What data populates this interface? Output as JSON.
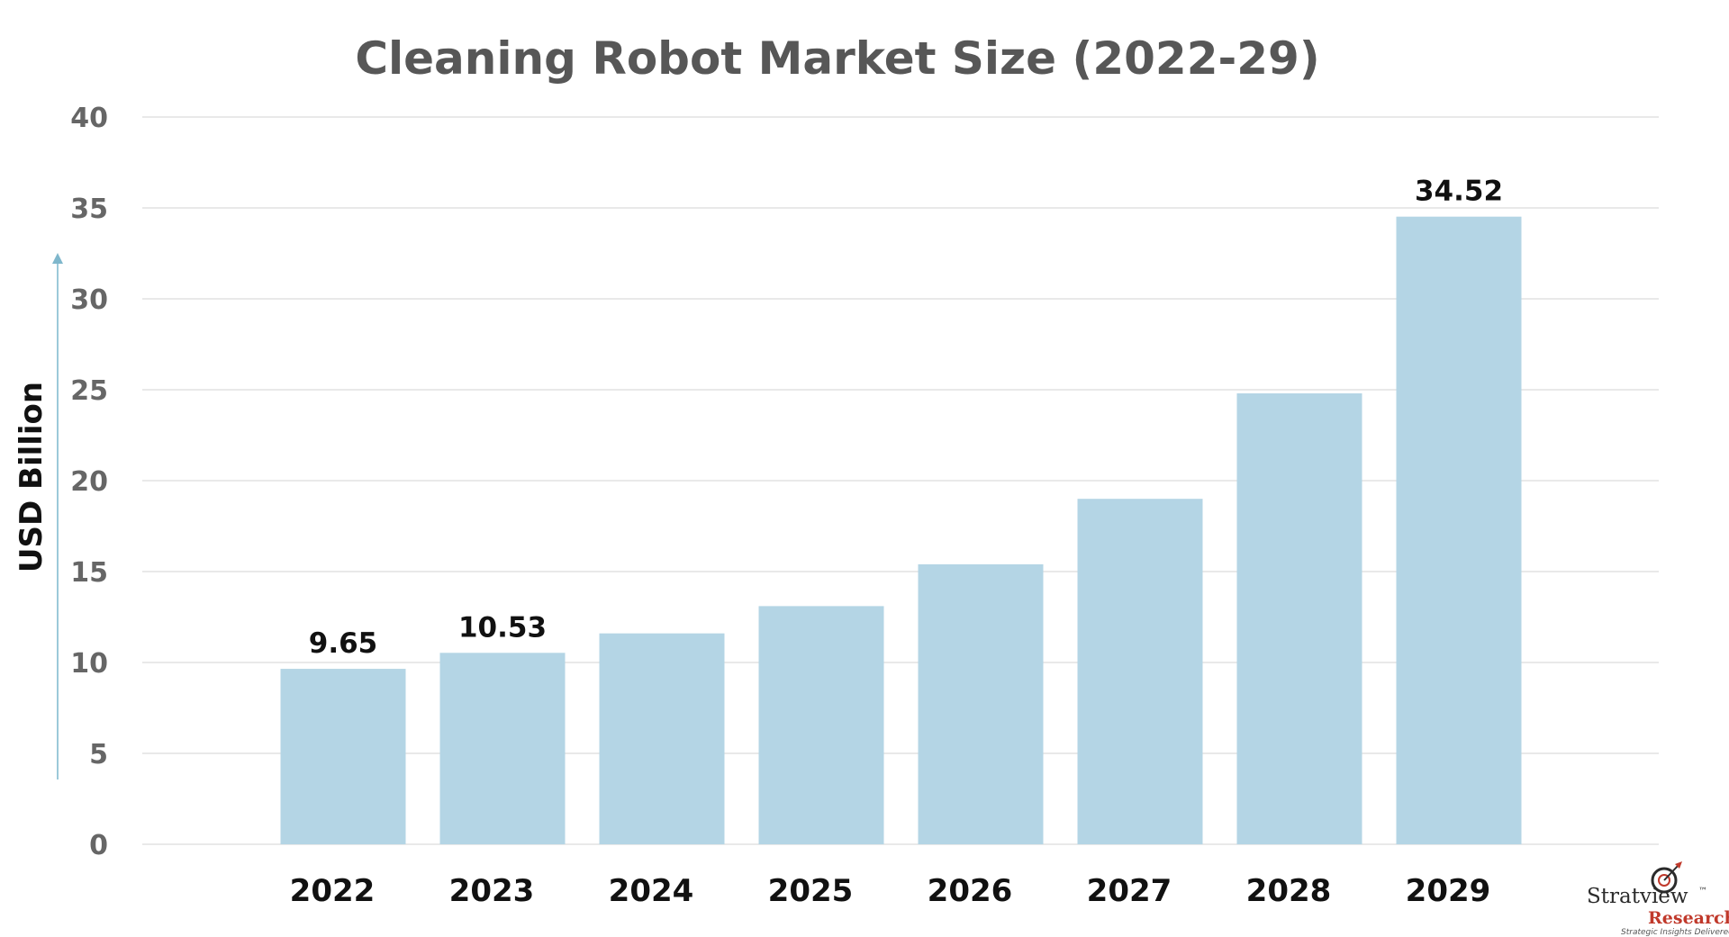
{
  "chart_data": {
    "type": "bar",
    "title": "Cleaning Robot Market Size (2022-29)",
    "ylabel": "USD Billion",
    "xlabel": "",
    "categories": [
      "2022",
      "2023",
      "2024",
      "2025",
      "2026",
      "2027",
      "2028",
      "2029"
    ],
    "values": [
      9.65,
      10.53,
      11.6,
      13.1,
      15.4,
      19.0,
      24.8,
      34.52
    ],
    "data_labels": [
      "9.65",
      "10.53",
      "",
      "",
      "",
      "",
      "",
      "34.52"
    ],
    "ylim": [
      0,
      40
    ],
    "yticks": [
      0,
      5,
      10,
      15,
      20,
      25,
      30,
      35,
      40
    ],
    "grid": true,
    "bar_color": "#b4d5e5",
    "grid_color": "#e2e2e2"
  },
  "logo": {
    "name": "Stratview",
    "tm": "™",
    "sub": "Research",
    "tagline": "Strategic Insights Delivered"
  }
}
